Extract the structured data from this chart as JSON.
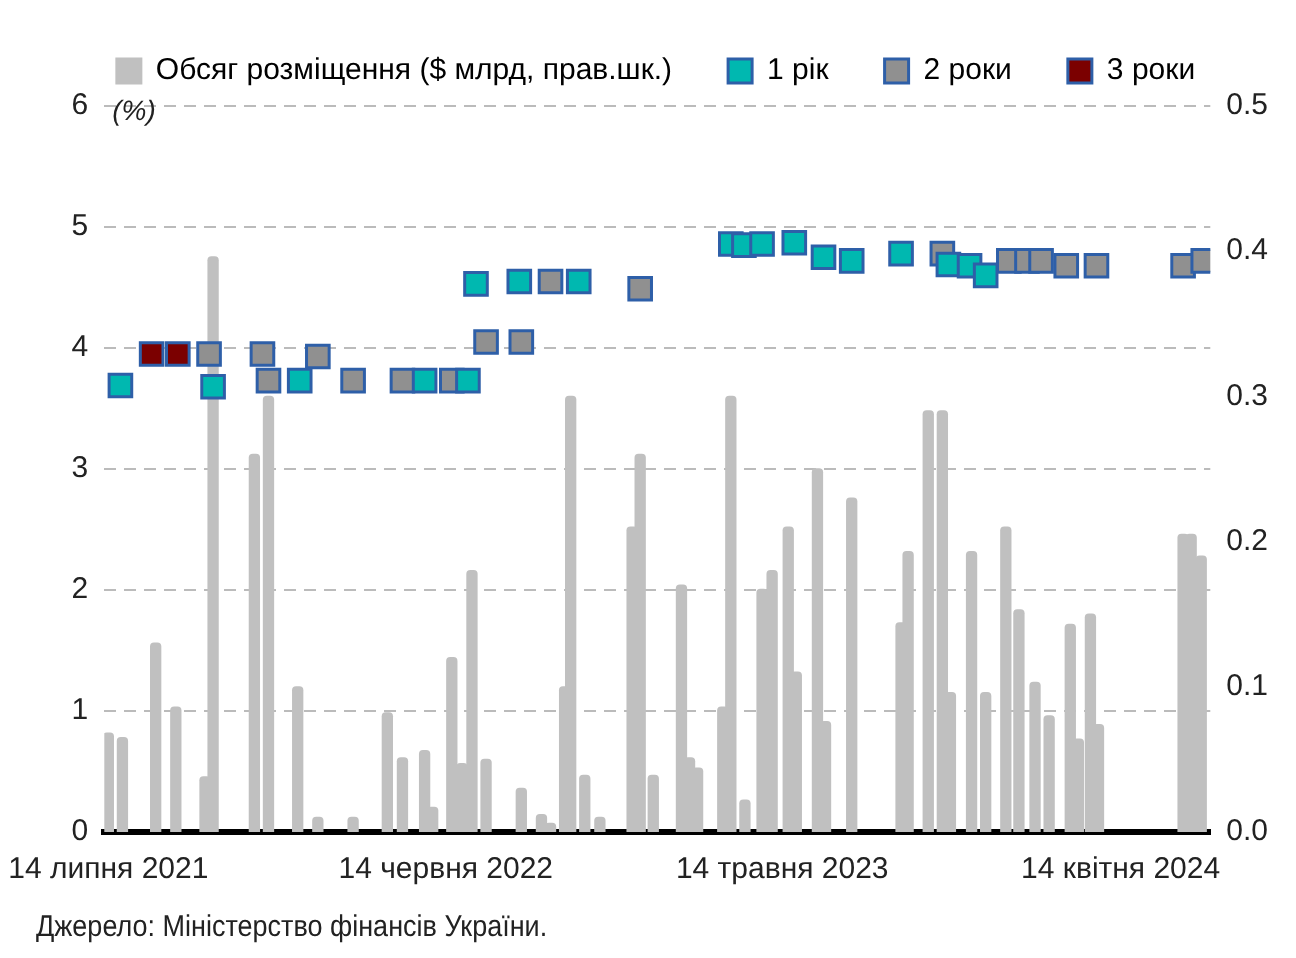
{
  "chart_data": {
    "type": "bar",
    "ylabel": "(%)",
    "xlim": [
      "2021-07-10",
      "2024-07-12"
    ],
    "xticks": [
      {
        "value": "2021-07-14",
        "label": "14 липня 2021"
      },
      {
        "value": "2022-06-14",
        "label": "14 червня 2022"
      },
      {
        "value": "2023-05-14",
        "label": "14 травня 2023"
      },
      {
        "value": "2024-04-14",
        "label": "14 квітня 2024"
      }
    ],
    "ylim": [
      0,
      6
    ],
    "yticks": [
      0,
      1,
      2,
      3,
      4,
      5,
      6
    ],
    "y2lim": [
      0,
      0.5
    ],
    "y2ticks": [
      {
        "value": 0,
        "label": "0.0"
      },
      0.1,
      0.2,
      0.3,
      0.4,
      0.5
    ],
    "grid": "y",
    "legend": "top",
    "marker": "square",
    "annotations": [
      "Джерело: Міністерство фінансів України."
    ],
    "series": [
      {
        "name": "Обсяг розміщення ($ млрд, прав.шк.)",
        "axis": "y2",
        "color": "#c0c0c0",
        "x": [
          "2021-07-14",
          "2021-07-28",
          "2021-08-30",
          "2021-09-19",
          "2021-10-18",
          "2021-10-26",
          "2021-12-06",
          "2021-12-20",
          "2022-01-18",
          "2022-02-07",
          "2022-03-14",
          "2022-04-17",
          "2022-05-02",
          "2022-05-24",
          "2022-06-01",
          "2022-06-20",
          "2022-06-30",
          "2022-07-10",
          "2022-07-24",
          "2022-08-28",
          "2022-09-17",
          "2022-09-26",
          "2022-10-10",
          "2022-10-16",
          "2022-10-30",
          "2022-11-14",
          "2022-12-16",
          "2022-12-24",
          "2023-01-06",
          "2023-02-03",
          "2023-02-11",
          "2023-02-19",
          "2023-03-16",
          "2023-03-24",
          "2023-04-07",
          "2023-04-24",
          "2023-05-04",
          "2023-05-20",
          "2023-05-28",
          "2023-06-18",
          "2023-06-26",
          "2023-07-22",
          "2023-09-09",
          "2023-09-16",
          "2023-10-06",
          "2023-10-20",
          "2023-10-28",
          "2023-11-18",
          "2023-12-02",
          "2023-12-22",
          "2024-01-04",
          "2024-01-20",
          "2024-02-03",
          "2024-02-24",
          "2024-03-03",
          "2024-03-15",
          "2024-03-23",
          "2024-06-15",
          "2024-06-23",
          "2024-07-03"
        ],
        "values": [
          0.068,
          0.065,
          0.13,
          0.086,
          0.038,
          0.396,
          0.26,
          0.3,
          0.1,
          0.01,
          0.01,
          0.082,
          0.051,
          0.056,
          0.017,
          0.12,
          0.047,
          0.18,
          0.05,
          0.03,
          0.012,
          0.006,
          0.1,
          0.3,
          0.039,
          0.01,
          0.21,
          0.26,
          0.039,
          0.17,
          0.051,
          0.044,
          0.086,
          0.3,
          0.022,
          0.167,
          0.18,
          0.21,
          0.11,
          0.25,
          0.076,
          0.23,
          0.144,
          0.193,
          0.29,
          0.29,
          0.096,
          0.193,
          0.096,
          0.21,
          0.153,
          0.103,
          0.08,
          0.143,
          0.064,
          0.15,
          0.074,
          0.205,
          0.205,
          0.19
        ]
      },
      {
        "name": "1 рік",
        "type": "scatter",
        "color": "#00b8b0",
        "x": [
          "2021-07-26",
          "2021-10-26",
          "2022-01-20",
          "2022-05-24",
          "2022-07-06",
          "2022-07-14",
          "2022-08-26",
          "2022-10-24",
          "2023-03-24",
          "2023-04-06",
          "2023-04-24",
          "2023-05-26",
          "2023-06-24",
          "2023-07-22",
          "2023-09-09",
          "2023-10-26",
          "2023-11-16",
          "2023-12-02"
        ],
        "values": [
          3.69,
          3.68,
          3.73,
          3.73,
          3.73,
          4.53,
          4.55,
          4.55,
          4.86,
          4.85,
          4.86,
          4.87,
          4.75,
          4.72,
          4.78,
          4.69,
          4.68,
          4.6
        ]
      },
      {
        "name": "2 роки",
        "type": "scatter",
        "color": "#909090",
        "x": [
          "2021-10-22",
          "2021-12-14",
          "2021-12-20",
          "2022-02-07",
          "2022-03-14",
          "2022-05-02",
          "2022-06-20",
          "2022-07-24",
          "2022-08-28",
          "2022-09-26",
          "2022-12-24",
          "2023-10-20",
          "2023-12-25",
          "2024-01-12",
          "2024-01-26",
          "2024-02-20",
          "2024-03-21",
          "2024-06-15",
          "2024-07-05"
        ],
        "values": [
          3.95,
          3.95,
          3.73,
          3.93,
          3.73,
          3.73,
          3.73,
          4.05,
          4.05,
          4.55,
          4.49,
          4.78,
          4.72,
          4.72,
          4.72,
          4.68,
          4.68,
          4.68,
          4.72
        ]
      },
      {
        "name": "3 роки",
        "type": "scatter",
        "color": "#7b0000",
        "x": [
          "2021-08-26",
          "2021-09-21"
        ],
        "values": [
          3.95,
          3.95
        ]
      }
    ]
  }
}
